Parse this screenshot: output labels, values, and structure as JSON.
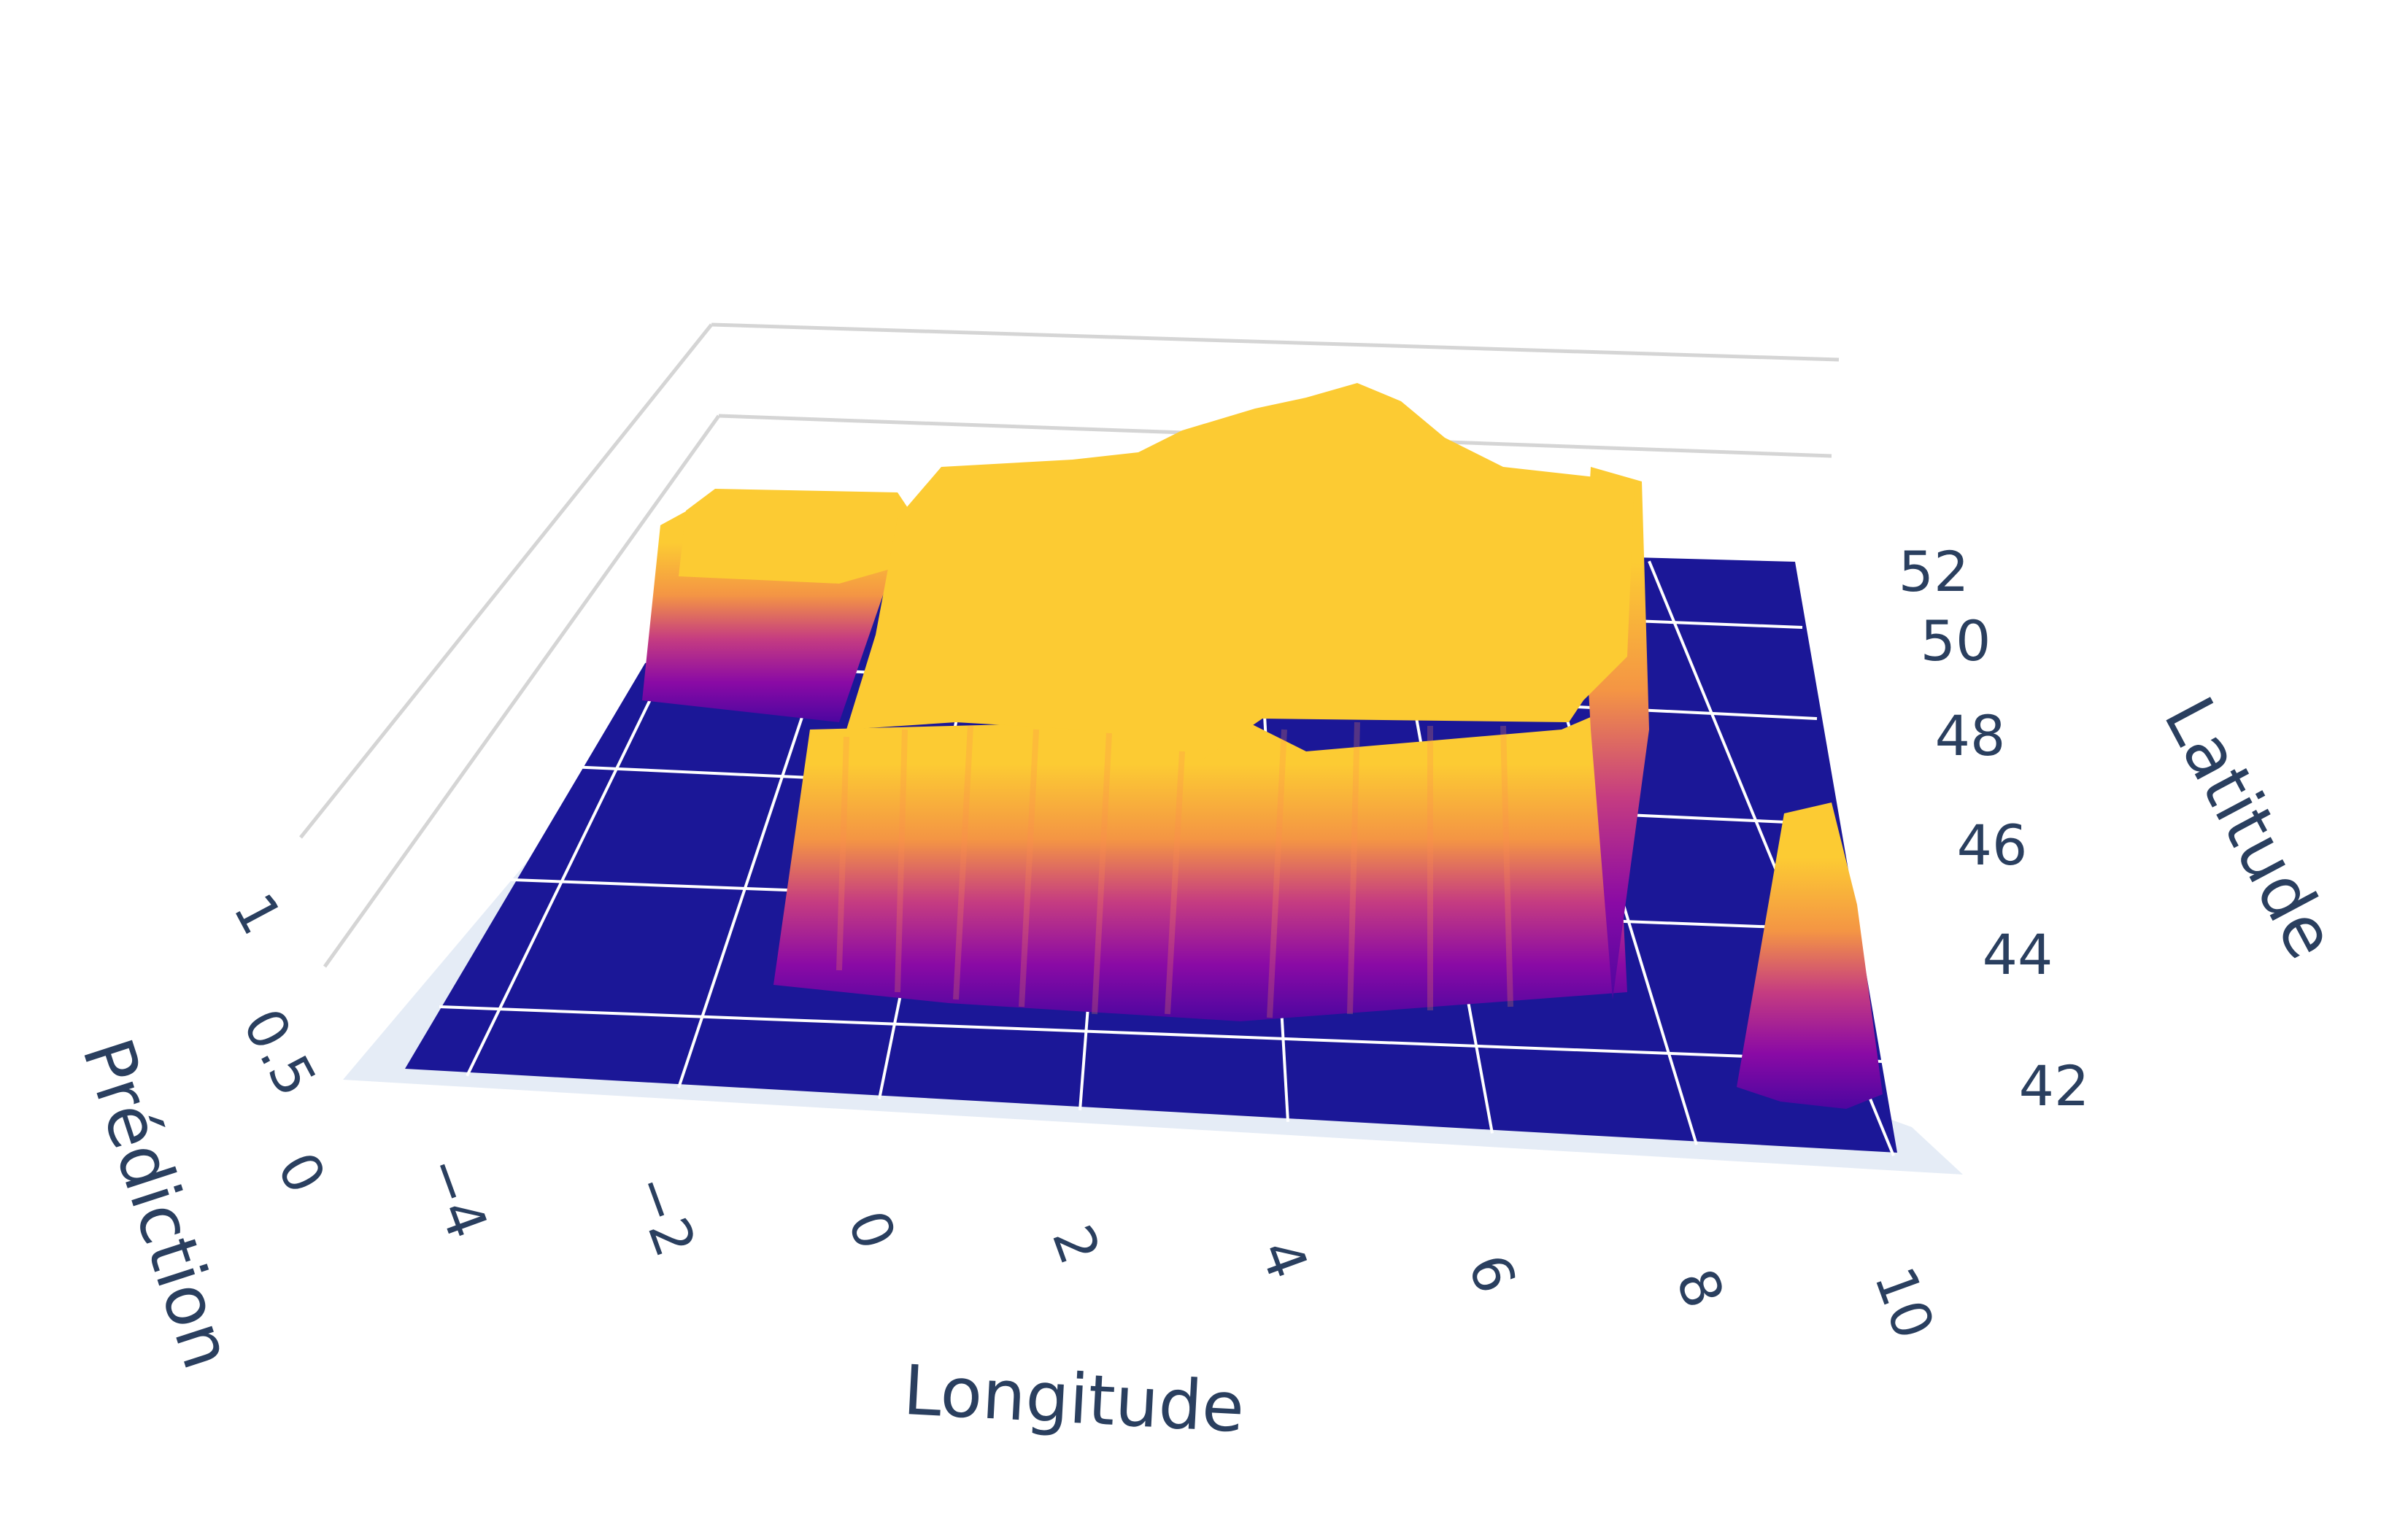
{
  "chart_data": {
    "type": "surface",
    "title": "",
    "xlabel": "Longitude",
    "ylabel": "Latitude",
    "zlabel": "Prédiction",
    "x_ticks": [
      "−4",
      "−2",
      "0",
      "2",
      "4",
      "6",
      "8",
      "10"
    ],
    "y_ticks": [
      "42",
      "44",
      "46",
      "48",
      "50",
      "52"
    ],
    "z_ticks": [
      "0",
      "0.5",
      "1"
    ],
    "xlim": [
      -5,
      10
    ],
    "ylim": [
      41,
      52
    ],
    "zlim": [
      0,
      1.3
    ],
    "colorscale": [
      "#0d0887",
      "#46039f",
      "#7201a8",
      "#9c179e",
      "#bd3786",
      "#d8576b",
      "#ed7953",
      "#fb9f3a",
      "#fdca26",
      "#f0f921"
    ],
    "surface_summary": [
      {
        "region": "mainland France (approx. lon −2 to 8, lat 43 to 51)",
        "prediction": 1
      },
      {
        "region": "Brittany (approx. lon −5 to −2, lat 47 to 49)",
        "prediction": 1
      },
      {
        "region": "Corsica (approx. lon 8.5 to 9.6, lat 41.4 to 43)",
        "prediction": 1
      },
      {
        "region": "elsewhere",
        "prediction": 0
      }
    ]
  }
}
